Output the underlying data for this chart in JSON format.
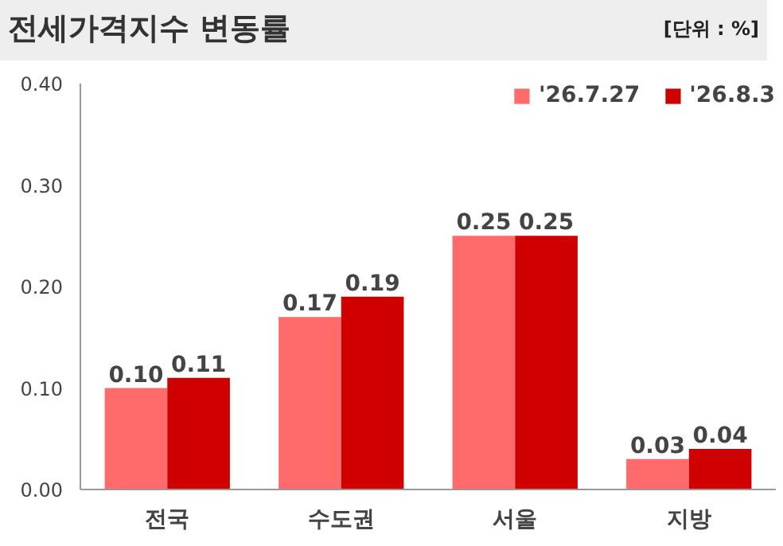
{
  "chart_data": {
    "type": "bar",
    "title": "전세가격지수 변동률",
    "annotations": [
      "[단위 : %]"
    ],
    "categories": [
      "전국",
      "수도권",
      "서울",
      "지방"
    ],
    "series": [
      {
        "name": "'26.7.27",
        "color": "#ff6b6b",
        "values": [
          0.1,
          0.17,
          0.25,
          0.03
        ],
        "value_labels": [
          "0.10",
          "0.17",
          "0.25",
          "0.03"
        ]
      },
      {
        "name": "'26.8.3",
        "color": "#d00000",
        "values": [
          0.11,
          0.19,
          0.25,
          0.04
        ],
        "value_labels": [
          "0.11",
          "0.19",
          "0.25",
          "0.04"
        ]
      }
    ],
    "ylim": [
      0,
      0.4
    ],
    "yticks": [
      {
        "value": 0,
        "label": "0.00"
      },
      {
        "value": 0.1,
        "label": "0.10"
      },
      {
        "value": 0.2,
        "label": "0.20"
      },
      {
        "value": 0.3,
        "label": "0.30"
      },
      {
        "value": 0.4,
        "label": "0.40"
      }
    ],
    "legend": "top right",
    "grid": false
  }
}
